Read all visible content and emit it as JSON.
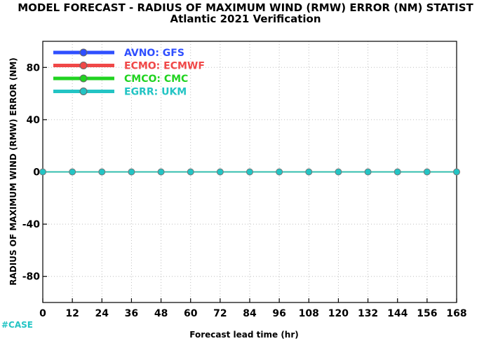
{
  "chart_data": {
    "type": "line",
    "title": "MODEL FORECAST - RADIUS OF MAXIMUM WIND (RMW) ERROR (NM) STATIST",
    "subtitle": "Atlantic 2021 Verification",
    "xlabel": "Forecast lead time (hr)",
    "ylabel": "RADIUS OF MAXIMUM WIND (RMW) ERROR (NM)",
    "x": [
      0,
      12,
      24,
      36,
      48,
      60,
      72,
      84,
      96,
      108,
      120,
      132,
      144,
      156,
      168
    ],
    "x_ticks": [
      0,
      12,
      24,
      36,
      48,
      60,
      72,
      84,
      96,
      108,
      120,
      132,
      144,
      156,
      168
    ],
    "y_ticks": [
      -80,
      -40,
      0,
      40,
      80
    ],
    "xlim": [
      0,
      168
    ],
    "ylim": [
      -100,
      100
    ],
    "grid": true,
    "legend_placement": "top-left",
    "series": [
      {
        "name": "AVNO: GFS",
        "color": "#2f4fff",
        "values": [
          0,
          0,
          0,
          0,
          0,
          0,
          0,
          0,
          0,
          0,
          0,
          0,
          0,
          0,
          0
        ]
      },
      {
        "name": "ECMO: ECMWF",
        "color": "#f04848",
        "values": [
          0,
          0,
          0,
          0,
          0,
          0,
          0,
          0,
          0,
          0,
          0,
          0,
          0,
          0,
          0
        ]
      },
      {
        "name": "CMCO: CMC",
        "color": "#21d321",
        "values": [
          0,
          0,
          0,
          0,
          0,
          0,
          0,
          0,
          0,
          0,
          0,
          0,
          0,
          0,
          0
        ]
      },
      {
        "name": "EGRR: UKM",
        "color": "#23c4c4",
        "values": [
          0,
          0,
          0,
          0,
          0,
          0,
          0,
          0,
          0,
          0,
          0,
          0,
          0,
          0,
          0
        ]
      }
    ],
    "case_label": "#CASE",
    "case_color": "#23c4c4"
  }
}
